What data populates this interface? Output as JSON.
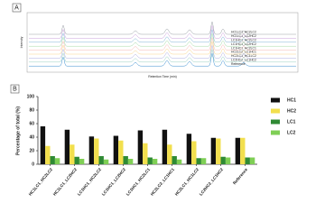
{
  "panel_a": {
    "label": "A",
    "x_label": "Retention Time (min)",
    "y_label": "Intensity",
    "traces": [
      "HC1LC1_HC2LC2",
      "HC1LC1_LC2HC2",
      "LC1HC1_HC2LC2",
      "LC1HC1_LC2HC2",
      "LC1HC1_HC2LC1",
      "HC2LC2_LC1HC1",
      "HC2LC1_HC1LC2",
      "LC2HC2_LC1HC2",
      "Reference"
    ]
  },
  "panel_b": {
    "label": "B"
  },
  "chart_data": {
    "type": "bar",
    "y_label": "Percentage of total (%)",
    "categories": [
      "HC1LC1_HC2LC2",
      "HC1LC1_LC2HC2",
      "LC1HC1_HC2LC2",
      "LC1HC1_LC2HC2",
      "LC1HC1_HC2LC1",
      "HC2LC2_LC1HC1",
      "HC2LC1_HC1LC2",
      "LC2HC2_LC1HC2",
      "Reference"
    ],
    "series": [
      {
        "name": "HC1",
        "color": "#111111",
        "values": [
          56,
          51,
          41,
          42,
          50,
          51,
          45,
          39,
          39
        ]
      },
      {
        "name": "HC2",
        "color": "#f2df4e",
        "values": [
          27,
          29,
          38,
          35,
          31,
          29,
          34,
          38,
          39
        ]
      },
      {
        "name": "LC1",
        "color": "#2f8a34",
        "values": [
          12,
          11,
          12,
          12,
          10,
          12,
          9,
          11,
          10
        ]
      },
      {
        "name": "LC2",
        "color": "#7fcf55",
        "values": [
          9,
          8,
          7,
          8,
          8,
          7,
          9,
          10,
          10
        ]
      }
    ],
    "ylim": [
      0,
      100
    ],
    "yticks": [
      0,
      20,
      40,
      60,
      80,
      100
    ]
  }
}
